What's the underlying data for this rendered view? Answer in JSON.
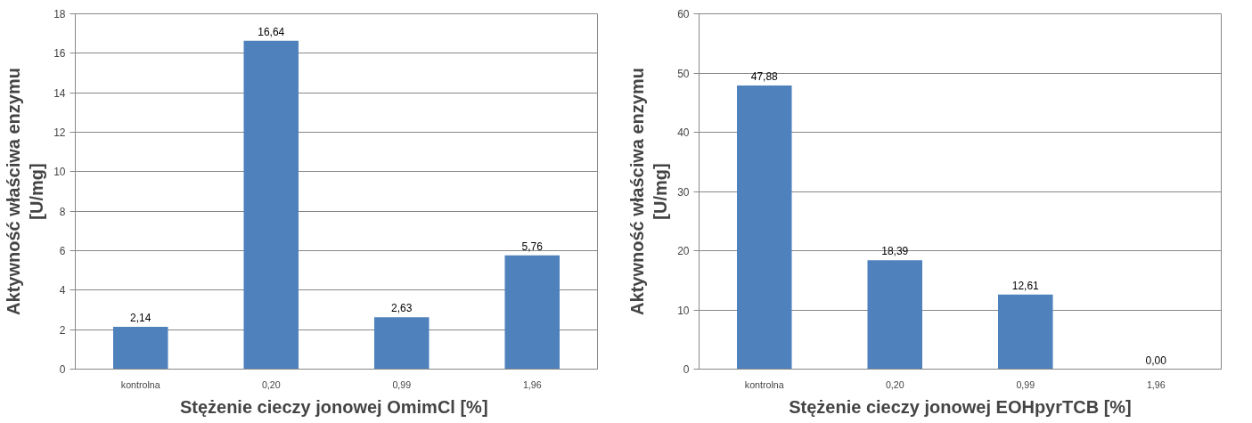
{
  "chart_data": [
    {
      "type": "bar",
      "xlabel": "Stężenie cieczy jonowej OmimCl  [%]",
      "ylabel": "Aktywność właściwa enzymu\n[U/mg]",
      "categories": [
        "kontrolna",
        "0,20",
        "0,99",
        "1,96"
      ],
      "values": [
        2.14,
        16.64,
        2.63,
        5.76
      ],
      "value_labels": [
        "2,14",
        "16,64",
        "2,63",
        "5,76"
      ],
      "color": "#4f81bd",
      "ylim": [
        0,
        18
      ],
      "yticks": [
        0,
        2,
        4,
        6,
        8,
        10,
        12,
        14,
        16,
        18
      ],
      "grid": "y"
    },
    {
      "type": "bar",
      "xlabel": "Stężenie cieczy jonowej EOHpyrTCB [%]",
      "ylabel": "Aktywność właściwa enzymu\n[U/mg]",
      "categories": [
        "kontrolna",
        "0,20",
        "0,99",
        "1,96"
      ],
      "values": [
        47.88,
        18.39,
        12.61,
        0.0
      ],
      "value_labels": [
        "47,88",
        "18,39",
        "12,61",
        "0,00"
      ],
      "color": "#4f81bd",
      "ylim": [
        0,
        60
      ],
      "yticks": [
        0,
        10,
        20,
        30,
        40,
        50,
        60
      ],
      "grid": "y"
    }
  ]
}
